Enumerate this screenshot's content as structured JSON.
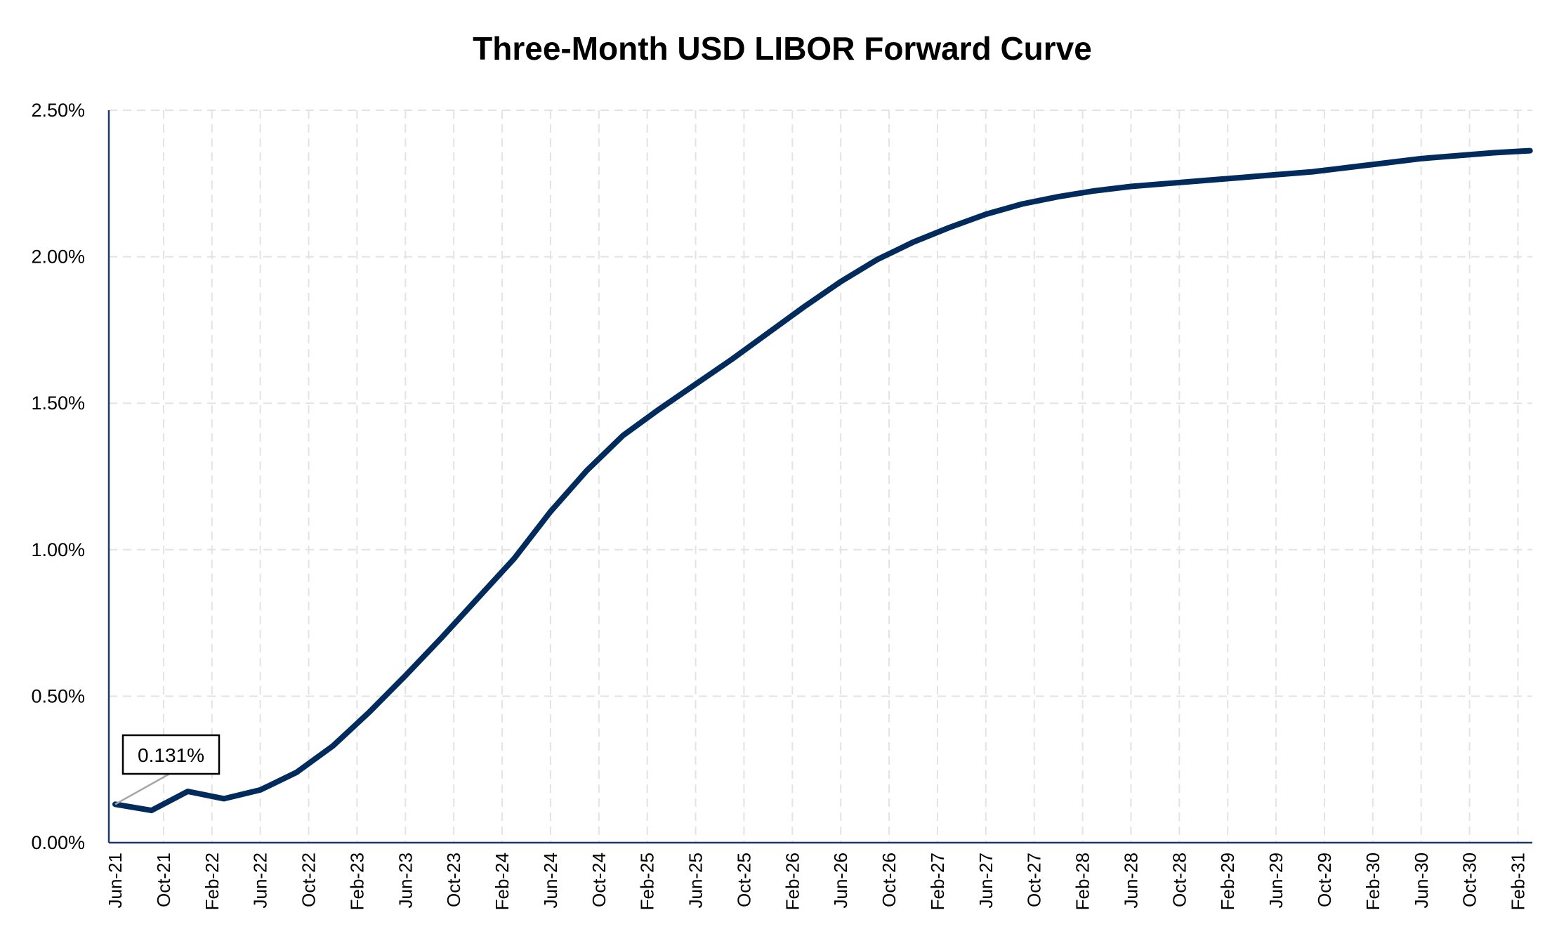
{
  "chart_data": {
    "type": "line",
    "title": "Three-Month USD LIBOR Forward Curve",
    "xlabel": "",
    "ylabel": "",
    "ylim": [
      0,
      2.5
    ],
    "y_ticks": [
      "0.00%",
      "0.50%",
      "1.00%",
      "1.50%",
      "2.00%",
      "2.50%"
    ],
    "y_tick_values": [
      0,
      0.5,
      1.0,
      1.5,
      2.0,
      2.5
    ],
    "x_start": "Jun-21",
    "x_tick_interval_months": 4,
    "x_ticks": [
      "Jun-21",
      "Oct-21",
      "Feb-22",
      "Jun-22",
      "Oct-22",
      "Feb-23",
      "Jun-23",
      "Oct-23",
      "Feb-24",
      "Jun-24",
      "Oct-24",
      "Feb-25",
      "Jun-25",
      "Oct-25",
      "Feb-26",
      "Jun-26",
      "Oct-26",
      "Feb-27",
      "Jun-27",
      "Oct-27",
      "Feb-28",
      "Jun-28",
      "Oct-28",
      "Feb-29",
      "Jun-29",
      "Oct-29",
      "Feb-30",
      "Jun-30",
      "Oct-30",
      "Feb-31"
    ],
    "grid": true,
    "legend": "none",
    "series": [
      {
        "name": "Three-Month USD LIBOR",
        "color": "#002B5C",
        "x_months_from_start": [
          0,
          3,
          6,
          9,
          12,
          15,
          18,
          21,
          24,
          27,
          30,
          33,
          36,
          39,
          42,
          45,
          48,
          51,
          54,
          57,
          60,
          63,
          66,
          69,
          72,
          75,
          78,
          81,
          84,
          87,
          90,
          93,
          96,
          99,
          102,
          105,
          108,
          111,
          114,
          117
        ],
        "values": [
          0.131,
          0.11,
          0.175,
          0.15,
          0.18,
          0.24,
          0.33,
          0.445,
          0.57,
          0.7,
          0.835,
          0.97,
          1.13,
          1.27,
          1.39,
          1.48,
          1.565,
          1.65,
          1.74,
          1.83,
          1.915,
          1.99,
          2.05,
          2.1,
          2.145,
          2.18,
          2.205,
          2.225,
          2.24,
          2.25,
          2.26,
          2.27,
          2.28,
          2.29,
          2.305,
          2.32,
          2.335,
          2.345,
          2.355,
          2.362
        ]
      }
    ],
    "annotations": [
      {
        "text": "0.131%",
        "point_index": 0
      }
    ]
  }
}
